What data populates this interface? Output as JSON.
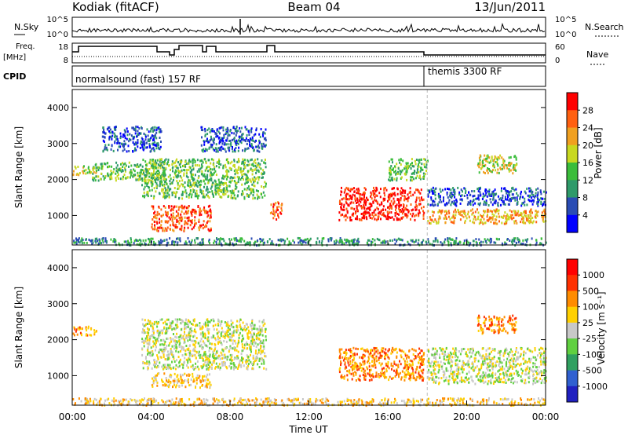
{
  "header": {
    "station": "Kodiak (fitACF)",
    "beam": "Beam 04",
    "date": "13/Jun/2011"
  },
  "params": {
    "nsky_label": "N.Sky",
    "nsearch_label": "N.Search",
    "freq_label": "Freq.",
    "freq_unit": "[MHz]",
    "nave_label": "Nave",
    "cpid_label": "CPID",
    "nsky_ticks": [
      "10^5",
      "10^0"
    ],
    "nsearch_ticks": [
      "10^5",
      "10^0"
    ],
    "freq_ticks": [
      "18",
      "8"
    ],
    "nave_ticks": [
      "60",
      "0"
    ],
    "cpid_modes": [
      "normalsound (fast) 157 RF",
      "themis 3300 RF"
    ]
  },
  "chart_data": [
    {
      "type": "heatmap",
      "title": "",
      "xlabel": "",
      "ylabel": "Slant Range [km]",
      "x_ticks": [
        "00:00",
        "04:00",
        "08:00",
        "12:00",
        "16:00",
        "20:00",
        "00:00"
      ],
      "xlim": [
        0,
        24
      ],
      "y_ticks": [
        "1000",
        "2000",
        "3000",
        "4000"
      ],
      "ylim": [
        180,
        4500
      ],
      "colorbar": {
        "label": "Power [dB]",
        "ticks": [
          "4",
          "8",
          "12",
          "16",
          "20",
          "24",
          "28"
        ],
        "colors": [
          "#0000ff",
          "#2a4cb4",
          "#2e9a6a",
          "#3bbd3b",
          "#c8d820",
          "#f0a020",
          "#ff6010",
          "#ff0000"
        ]
      },
      "echo_regions": [
        {
          "t0": 1.0,
          "t1": 4.8,
          "r0": 2000,
          "r1": 2500,
          "level": 3
        },
        {
          "t0": 0.0,
          "t1": 1.2,
          "r0": 2150,
          "r1": 2400,
          "level": 4
        },
        {
          "t0": 1.5,
          "t1": 4.5,
          "r0": 2800,
          "r1": 3500,
          "level": 1
        },
        {
          "t0": 3.5,
          "t1": 9.8,
          "r0": 1500,
          "r1": 2600,
          "level": 3
        },
        {
          "t0": 4.0,
          "t1": 7.0,
          "r0": 600,
          "r1": 1300,
          "level": 6
        },
        {
          "t0": 6.5,
          "t1": 9.8,
          "r0": 2800,
          "r1": 3500,
          "level": 1
        },
        {
          "t0": 10.0,
          "t1": 10.6,
          "r0": 900,
          "r1": 1400,
          "level": 6
        },
        {
          "t0": 13.5,
          "t1": 17.8,
          "r0": 900,
          "r1": 1800,
          "level": 7
        },
        {
          "t0": 16.0,
          "t1": 18.0,
          "r0": 2000,
          "r1": 2600,
          "level": 3
        },
        {
          "t0": 18.0,
          "t1": 24.0,
          "r0": 800,
          "r1": 1200,
          "level": 5
        },
        {
          "t0": 18.0,
          "t1": 24.0,
          "r0": 1300,
          "r1": 1800,
          "level": 1
        },
        {
          "t0": 20.5,
          "t1": 22.5,
          "r0": 2200,
          "r1": 2700,
          "level": 4
        },
        {
          "t0": 0.0,
          "t1": 24.0,
          "r0": 200,
          "r1": 400,
          "level": 2
        }
      ]
    },
    {
      "type": "heatmap",
      "title": "",
      "xlabel": "Time UT",
      "ylabel": "Slant Range [km]",
      "x_ticks": [
        "00:00",
        "04:00",
        "08:00",
        "12:00",
        "16:00",
        "20:00",
        "00:00"
      ],
      "xlim": [
        0,
        24
      ],
      "y_ticks": [
        "1000",
        "2000",
        "3000",
        "4000"
      ],
      "ylim": [
        180,
        4500
      ],
      "colorbar": {
        "label": "Velocity [m s⁻¹]",
        "ticks": [
          "1000",
          "500",
          "100",
          "25",
          "-25",
          "-100",
          "-500",
          "-1000"
        ],
        "colors": [
          "#2020c0",
          "#3060d0",
          "#30a060",
          "#60d040",
          "#c8c8c8",
          "#ffd000",
          "#ff8c00",
          "#ff3000",
          "#ff0000"
        ]
      },
      "echo_regions": [
        {
          "t0": 0.0,
          "t1": 1.2,
          "r0": 2150,
          "r1": 2400,
          "level": 6
        },
        {
          "t0": 3.5,
          "t1": 9.8,
          "r0": 1200,
          "r1": 2600,
          "level": 4
        },
        {
          "t0": 4.0,
          "t1": 7.0,
          "r0": 700,
          "r1": 1100,
          "level": 5
        },
        {
          "t0": 13.5,
          "t1": 17.8,
          "r0": 900,
          "r1": 1800,
          "level": 6
        },
        {
          "t0": 18.0,
          "t1": 24.0,
          "r0": 800,
          "r1": 1800,
          "level": 4
        },
        {
          "t0": 20.5,
          "t1": 22.5,
          "r0": 2200,
          "r1": 2700,
          "level": 6
        },
        {
          "t0": 0.0,
          "t1": 24.0,
          "r0": 200,
          "r1": 400,
          "level": 5
        }
      ]
    }
  ]
}
